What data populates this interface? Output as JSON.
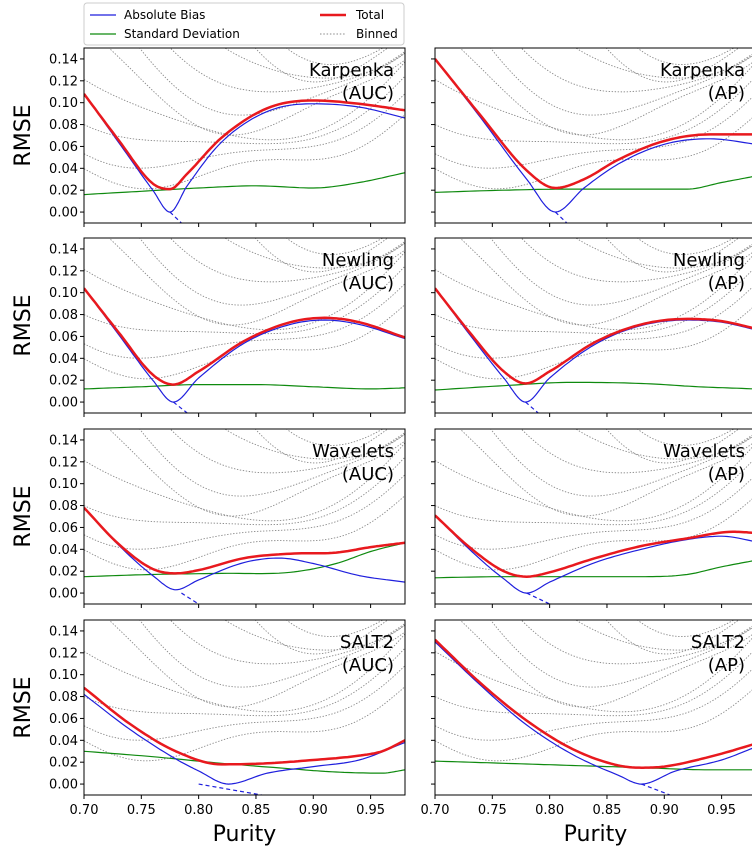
{
  "legend": {
    "entries": [
      {
        "label": "Absolute Bias",
        "color": "#1f1fdd",
        "style": "solid-thin"
      },
      {
        "label": "Total",
        "color": "#e8191e",
        "style": "solid-thick"
      },
      {
        "label": "Standard Deviation",
        "color": "#0f8a0f",
        "style": "solid-thin"
      },
      {
        "label": "Binned",
        "color": "#8a8a8a",
        "style": "dotted"
      }
    ]
  },
  "colors": {
    "bias": "#1f1fdd",
    "total": "#e8191e",
    "std": "#0f8a0f",
    "binned": "#8a8a8a"
  },
  "chart_data": [
    {
      "type": "line",
      "row": 0,
      "col": 0,
      "annotation": [
        "Karpenka",
        "(AUC)"
      ],
      "ylabel": "RMSE",
      "xlabel": "",
      "xlim": [
        0.7,
        0.98
      ],
      "ylim": [
        -0.01,
        0.15
      ],
      "series": [
        {
          "name": "Total",
          "x": [
            0.7,
            0.73,
            0.76,
            0.775,
            0.79,
            0.82,
            0.86,
            0.9,
            0.94,
            0.98
          ],
          "y": [
            0.108,
            0.066,
            0.026,
            0.021,
            0.035,
            0.068,
            0.095,
            0.102,
            0.099,
            0.093
          ]
        },
        {
          "name": "Absolute Bias",
          "x": [
            0.7,
            0.73,
            0.76,
            0.775,
            0.79,
            0.82,
            0.86,
            0.9,
            0.94,
            0.98
          ],
          "y": [
            0.108,
            0.064,
            0.02,
            0.0,
            0.024,
            0.064,
            0.092,
            0.099,
            0.096,
            0.086
          ]
        },
        {
          "name": "Standard Deviation",
          "x": [
            0.7,
            0.75,
            0.8,
            0.85,
            0.9,
            0.94,
            0.98
          ],
          "y": [
            0.016,
            0.019,
            0.022,
            0.024,
            0.022,
            0.027,
            0.036
          ]
        }
      ],
      "bias_zero": [
        0.775,
        0.785
      ]
    },
    {
      "type": "line",
      "row": 0,
      "col": 1,
      "annotation": [
        "Karpenka",
        "(AP)"
      ],
      "ylabel": "",
      "xlabel": "",
      "xlim": [
        0.7,
        0.98
      ],
      "ylim": [
        -0.01,
        0.15
      ],
      "series": [
        {
          "name": "Total",
          "x": [
            0.7,
            0.74,
            0.78,
            0.805,
            0.83,
            0.86,
            0.9,
            0.94,
            0.98
          ],
          "y": [
            0.14,
            0.088,
            0.038,
            0.022,
            0.03,
            0.048,
            0.065,
            0.071,
            0.071
          ]
        },
        {
          "name": "Absolute Bias",
          "x": [
            0.7,
            0.74,
            0.78,
            0.805,
            0.83,
            0.86,
            0.9,
            0.94,
            0.98
          ],
          "y": [
            0.14,
            0.086,
            0.03,
            0.0,
            0.022,
            0.044,
            0.062,
            0.067,
            0.062
          ]
        },
        {
          "name": "Standard Deviation",
          "x": [
            0.7,
            0.76,
            0.82,
            0.88,
            0.92,
            0.95,
            0.98
          ],
          "y": [
            0.018,
            0.02,
            0.021,
            0.021,
            0.021,
            0.027,
            0.033
          ]
        }
      ],
      "bias_zero": [
        0.805,
        0.815
      ]
    },
    {
      "type": "line",
      "row": 1,
      "col": 0,
      "annotation": [
        "Newling",
        "(AUC)"
      ],
      "ylabel": "RMSE",
      "xlabel": "",
      "xlim": [
        0.7,
        0.98
      ],
      "ylim": [
        -0.01,
        0.15
      ],
      "series": [
        {
          "name": "Total",
          "x": [
            0.7,
            0.73,
            0.76,
            0.778,
            0.8,
            0.84,
            0.88,
            0.91,
            0.94,
            0.98
          ],
          "y": [
            0.104,
            0.064,
            0.025,
            0.016,
            0.028,
            0.056,
            0.073,
            0.077,
            0.073,
            0.059
          ]
        },
        {
          "name": "Absolute Bias",
          "x": [
            0.7,
            0.73,
            0.76,
            0.778,
            0.8,
            0.84,
            0.88,
            0.91,
            0.94,
            0.98
          ],
          "y": [
            0.104,
            0.062,
            0.02,
            0.0,
            0.022,
            0.054,
            0.071,
            0.075,
            0.071,
            0.058
          ]
        },
        {
          "name": "Standard Deviation",
          "x": [
            0.7,
            0.75,
            0.8,
            0.85,
            0.9,
            0.95,
            0.98
          ],
          "y": [
            0.012,
            0.014,
            0.016,
            0.016,
            0.014,
            0.012,
            0.013
          ]
        }
      ],
      "bias_zero": [
        0.778,
        0.79
      ]
    },
    {
      "type": "line",
      "row": 1,
      "col": 1,
      "annotation": [
        "Newling",
        "(AP)"
      ],
      "ylabel": "",
      "xlabel": "",
      "xlim": [
        0.7,
        0.98
      ],
      "ylim": [
        -0.01,
        0.15
      ],
      "series": [
        {
          "name": "Total",
          "x": [
            0.7,
            0.73,
            0.76,
            0.779,
            0.8,
            0.84,
            0.88,
            0.92,
            0.95,
            0.98
          ],
          "y": [
            0.104,
            0.064,
            0.028,
            0.017,
            0.028,
            0.055,
            0.071,
            0.076,
            0.074,
            0.067
          ]
        },
        {
          "name": "Absolute Bias",
          "x": [
            0.7,
            0.73,
            0.76,
            0.779,
            0.8,
            0.84,
            0.88,
            0.92,
            0.95,
            0.98
          ],
          "y": [
            0.104,
            0.062,
            0.022,
            0.0,
            0.022,
            0.053,
            0.07,
            0.075,
            0.073,
            0.066
          ]
        },
        {
          "name": "Standard Deviation",
          "x": [
            0.7,
            0.76,
            0.82,
            0.88,
            0.93,
            0.98
          ],
          "y": [
            0.011,
            0.015,
            0.018,
            0.017,
            0.014,
            0.012
          ]
        }
      ],
      "bias_zero": [
        0.779,
        0.79
      ]
    },
    {
      "type": "line",
      "row": 2,
      "col": 0,
      "annotation": [
        "Wavelets",
        "(AUC)"
      ],
      "ylabel": "RMSE",
      "xlabel": "",
      "xlim": [
        0.7,
        0.98
      ],
      "ylim": [
        -0.01,
        0.15
      ],
      "series": [
        {
          "name": "Total",
          "x": [
            0.7,
            0.73,
            0.76,
            0.78,
            0.8,
            0.84,
            0.88,
            0.92,
            0.95,
            0.98
          ],
          "y": [
            0.078,
            0.045,
            0.022,
            0.018,
            0.021,
            0.032,
            0.036,
            0.037,
            0.042,
            0.046
          ]
        },
        {
          "name": "Absolute Bias",
          "x": [
            0.7,
            0.73,
            0.76,
            0.78,
            0.8,
            0.84,
            0.87,
            0.9,
            0.94,
            0.98
          ],
          "y": [
            0.078,
            0.044,
            0.016,
            0.003,
            0.012,
            0.028,
            0.032,
            0.027,
            0.016,
            0.01
          ]
        },
        {
          "name": "Standard Deviation",
          "x": [
            0.7,
            0.76,
            0.82,
            0.88,
            0.92,
            0.95,
            0.98
          ],
          "y": [
            0.015,
            0.017,
            0.018,
            0.019,
            0.027,
            0.038,
            0.046
          ]
        }
      ],
      "bias_zero": [
        0.785,
        0.8
      ]
    },
    {
      "type": "line",
      "row": 2,
      "col": 1,
      "annotation": [
        "Wavelets",
        "(AP)"
      ],
      "ylabel": "",
      "xlabel": "",
      "xlim": [
        0.7,
        0.98
      ],
      "ylim": [
        -0.01,
        0.15
      ],
      "series": [
        {
          "name": "Total",
          "x": [
            0.7,
            0.73,
            0.76,
            0.78,
            0.8,
            0.84,
            0.88,
            0.92,
            0.96,
            0.98
          ],
          "y": [
            0.071,
            0.042,
            0.02,
            0.015,
            0.019,
            0.032,
            0.043,
            0.05,
            0.056,
            0.055
          ]
        },
        {
          "name": "Absolute Bias",
          "x": [
            0.7,
            0.73,
            0.76,
            0.78,
            0.8,
            0.84,
            0.88,
            0.92,
            0.95,
            0.98
          ],
          "y": [
            0.071,
            0.04,
            0.013,
            0.0,
            0.01,
            0.028,
            0.04,
            0.049,
            0.052,
            0.047
          ]
        },
        {
          "name": "Standard Deviation",
          "x": [
            0.7,
            0.76,
            0.82,
            0.88,
            0.92,
            0.95,
            0.98
          ],
          "y": [
            0.014,
            0.015,
            0.015,
            0.015,
            0.017,
            0.024,
            0.03
          ]
        }
      ],
      "bias_zero": [
        0.78,
        0.8
      ]
    },
    {
      "type": "line",
      "row": 3,
      "col": 0,
      "annotation": [
        "SALT2",
        "(AUC)"
      ],
      "ylabel": "RMSE",
      "xlabel": "Purity",
      "xlim": [
        0.7,
        0.98
      ],
      "ylim": [
        -0.01,
        0.15
      ],
      "xticks": [
        "0.70",
        "0.75",
        "0.80",
        "0.85",
        "0.90",
        "0.95"
      ],
      "series": [
        {
          "name": "Total",
          "x": [
            0.7,
            0.74,
            0.78,
            0.82,
            0.86,
            0.9,
            0.94,
            0.96,
            0.98
          ],
          "y": [
            0.088,
            0.055,
            0.03,
            0.018,
            0.019,
            0.022,
            0.026,
            0.03,
            0.04
          ]
        },
        {
          "name": "Absolute Bias",
          "x": [
            0.7,
            0.74,
            0.78,
            0.8,
            0.826,
            0.86,
            0.9,
            0.94,
            0.98
          ],
          "y": [
            0.082,
            0.05,
            0.023,
            0.012,
            0.0,
            0.01,
            0.016,
            0.022,
            0.038
          ]
        },
        {
          "name": "Standard Deviation",
          "x": [
            0.7,
            0.76,
            0.82,
            0.88,
            0.92,
            0.96,
            0.98
          ],
          "y": [
            0.03,
            0.025,
            0.019,
            0.014,
            0.011,
            0.01,
            0.013
          ]
        }
      ],
      "bias_zero": [
        0.8,
        0.855
      ]
    },
    {
      "type": "line",
      "row": 3,
      "col": 1,
      "annotation": [
        "SALT2",
        "(AP)"
      ],
      "ylabel": "",
      "xlabel": "Purity",
      "xlim": [
        0.7,
        0.98
      ],
      "ylim": [
        -0.01,
        0.15
      ],
      "xticks": [
        "0.70",
        "0.75",
        "0.80",
        "0.85",
        "0.90",
        "0.95"
      ],
      "series": [
        {
          "name": "Total",
          "x": [
            0.7,
            0.74,
            0.78,
            0.82,
            0.86,
            0.88,
            0.9,
            0.94,
            0.98
          ],
          "y": [
            0.132,
            0.092,
            0.058,
            0.032,
            0.017,
            0.015,
            0.016,
            0.025,
            0.037
          ]
        },
        {
          "name": "Absolute Bias",
          "x": [
            0.7,
            0.74,
            0.78,
            0.82,
            0.86,
            0.88,
            0.91,
            0.95,
            0.98
          ],
          "y": [
            0.13,
            0.09,
            0.054,
            0.027,
            0.008,
            0.0,
            0.012,
            0.022,
            0.034
          ]
        },
        {
          "name": "Standard Deviation",
          "x": [
            0.7,
            0.76,
            0.82,
            0.88,
            0.94,
            0.98
          ],
          "y": [
            0.021,
            0.019,
            0.017,
            0.015,
            0.013,
            0.013
          ]
        }
      ],
      "bias_zero": [
        0.88,
        0.905
      ]
    }
  ],
  "yticks": [
    "0.00",
    "0.02",
    "0.04",
    "0.06",
    "0.08",
    "0.10",
    "0.12",
    "0.14"
  ]
}
